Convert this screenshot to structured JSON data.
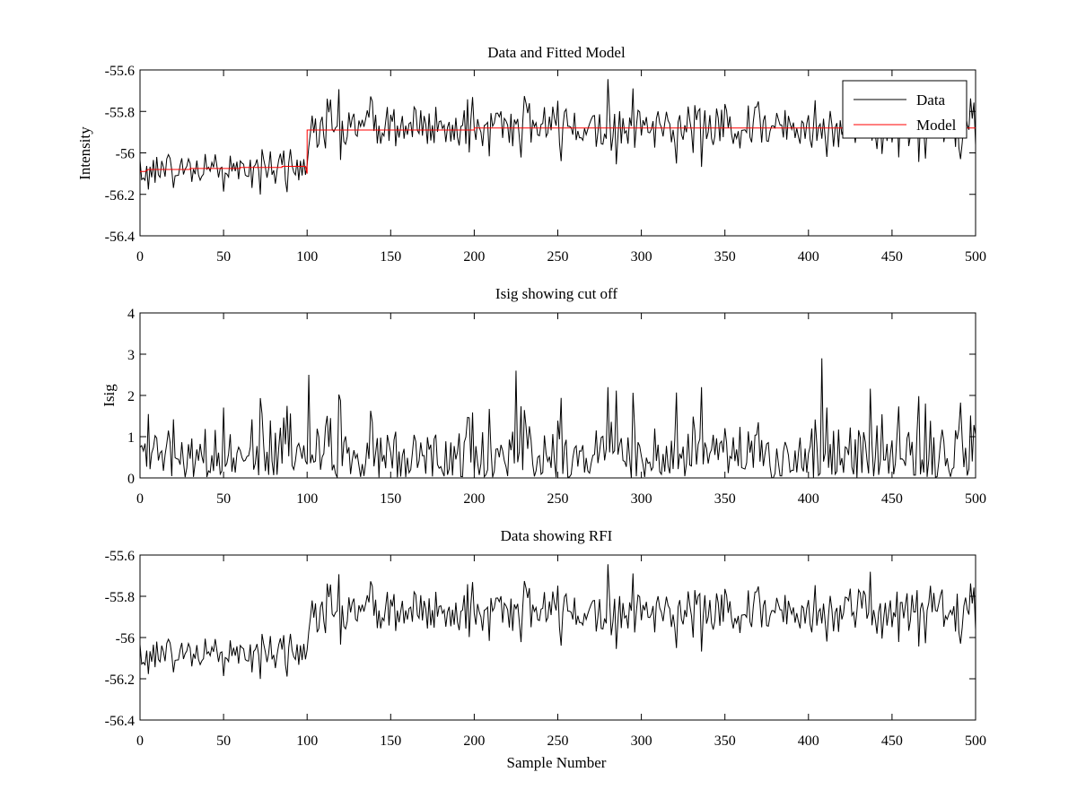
{
  "chart_data": [
    {
      "type": "line",
      "title": "Data and Fitted Model",
      "xlabel": "",
      "ylabel": "Intensity",
      "xlim": [
        0,
        500
      ],
      "ylim": [
        -56.4,
        -55.6
      ],
      "xticks": [
        0,
        50,
        100,
        150,
        200,
        250,
        300,
        350,
        400,
        450,
        500
      ],
      "yticks": [
        -56.4,
        -56.2,
        -56,
        -55.8,
        -55.6
      ],
      "ytick_labels": [
        "-56.4",
        "-56.2",
        "-56",
        "-55.8",
        "-55.6"
      ],
      "grid": false,
      "legend": {
        "position": "top-right",
        "entries": [
          "Data",
          "Model"
        ]
      },
      "series": [
        {
          "name": "Data",
          "color": "#000000",
          "style": "noisy line",
          "segments": [
            {
              "x_from": 0,
              "x_to": 100,
              "mean": -56.08,
              "std": 0.05,
              "min": -56.25,
              "max": -55.9
            },
            {
              "x_from": 101,
              "x_to": 500,
              "mean": -55.87,
              "std": 0.07,
              "min": -56.14,
              "max": -55.63
            }
          ]
        },
        {
          "name": "Model",
          "color": "#ff0000",
          "style": "step",
          "x": [
            0,
            3,
            5,
            30,
            30,
            60,
            60,
            85,
            85,
            99,
            100,
            100,
            200,
            200,
            500
          ],
          "y": [
            -56.09,
            -56.09,
            -56.08,
            -56.08,
            -56.075,
            -56.075,
            -56.07,
            -56.07,
            -56.065,
            -56.065,
            -56.1,
            -55.89,
            -55.89,
            -55.88,
            -55.88
          ]
        }
      ]
    },
    {
      "type": "line",
      "title": "Isig showing cut off",
      "xlabel": "",
      "ylabel": "Isig",
      "xlim": [
        0,
        500
      ],
      "ylim": [
        0,
        4
      ],
      "xticks": [
        0,
        50,
        100,
        150,
        200,
        250,
        300,
        350,
        400,
        450,
        500
      ],
      "yticks": [
        0,
        1,
        2,
        3,
        4
      ],
      "ytick_labels": [
        "0",
        "1",
        "2",
        "3",
        "4"
      ],
      "grid": false,
      "series": [
        {
          "color": "#000000",
          "style": "noisy line (absolute deviation)",
          "peaks": [
            {
              "x": 101,
              "y": 2.5
            },
            {
              "x": 225,
              "y": 2.6
            },
            {
              "x": 408,
              "y": 2.9
            }
          ]
        }
      ]
    },
    {
      "type": "line",
      "title": "Data showing RFI",
      "xlabel": "Sample Number",
      "ylabel": "",
      "xlim": [
        0,
        500
      ],
      "ylim": [
        -56.4,
        -55.6
      ],
      "xticks": [
        0,
        50,
        100,
        150,
        200,
        250,
        300,
        350,
        400,
        450,
        500
      ],
      "yticks": [
        -56.4,
        -56.2,
        -56,
        -55.8,
        -55.6
      ],
      "ytick_labels": [
        "-56.4",
        "-56.2",
        "-56",
        "-55.8",
        "-55.6"
      ],
      "grid": false,
      "series": [
        {
          "color": "#000000",
          "style": "noisy line",
          "segments": [
            {
              "x_from": 0,
              "x_to": 100,
              "mean": -56.08,
              "std": 0.05,
              "min": -56.25,
              "max": -55.9
            },
            {
              "x_from": 101,
              "x_to": 500,
              "mean": -55.87,
              "std": 0.07,
              "min": -56.14,
              "max": -55.63
            }
          ]
        }
      ]
    }
  ]
}
